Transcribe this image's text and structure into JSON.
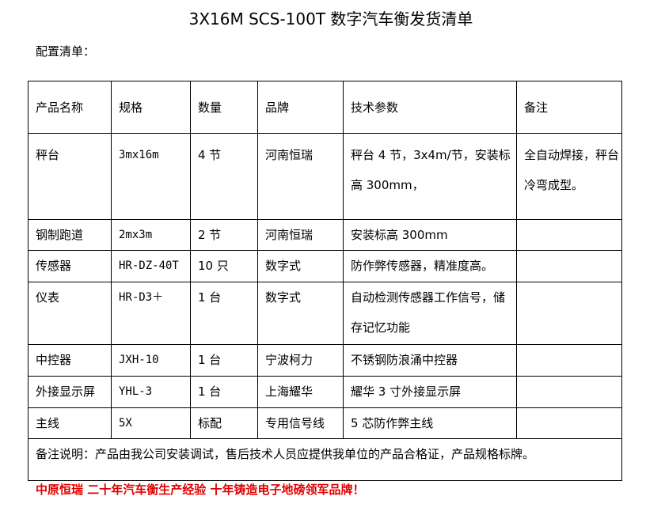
{
  "title": "3X16M SCS-100T 数字汽车衡发货清单",
  "subtitle": "配置清单：",
  "headers": [
    "产品名称",
    "规格",
    "数量",
    "品牌",
    "技术参数",
    "备注"
  ],
  "rows": [
    [
      "秤台",
      "3mx16m",
      "4 节",
      "河南恒瑞",
      "秤台 4 节，3x4m/节，安装标高 300mm，",
      "全自动焊接，秤台冷弯成型。"
    ],
    [
      "钢制跑道",
      "2mx3m",
      "2 节",
      "河南恒瑞",
      "安装标高 300mm",
      ""
    ],
    [
      "传感器",
      "HR-DZ-40T",
      "10 只",
      "数字式",
      "防作弊传感器，精准度高。",
      ""
    ],
    [
      "仪表",
      "HR-D3＋",
      "1 台",
      "数字式",
      "自动检测传感器工作信号，储存记忆功能",
      ""
    ],
    [
      "中控器",
      "JXH-10",
      "1 台",
      "宁波柯力",
      "不锈钢防浪涌中控器",
      ""
    ],
    [
      "外接显示屏",
      "YHL-3",
      "1 台",
      "上海耀华",
      "耀华 3 寸外接显示屏",
      ""
    ],
    [
      "主线",
      "5X",
      "标配",
      "专用信号线",
      "5 芯防作弊主线",
      ""
    ]
  ],
  "note": "备注说明：产品由我公司安装调试，售后技术人员应提供我单位的产品合格证，产品规格标牌。",
  "footer": "中原恒瑞 二十年汽车衡生产经验 十年铸造电子地磅领军品牌！"
}
